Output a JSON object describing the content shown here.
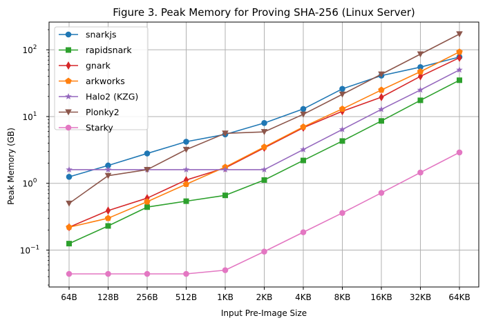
{
  "chart_data": {
    "type": "line",
    "title": "Figure 3. Peak Memory for Proving SHA-256 (Linux Server)",
    "xlabel": "Input Pre-Image Size",
    "ylabel": "Peak Memory (GB)",
    "yscale": "log",
    "ylim": [
      0.028,
      260
    ],
    "yticks": [
      {
        "value": 0.1,
        "base": "10",
        "exp": "−1"
      },
      {
        "value": 1,
        "base": "10",
        "exp": "0"
      },
      {
        "value": 10,
        "base": "10",
        "exp": "1"
      },
      {
        "value": 100,
        "base": "10",
        "exp": "2"
      }
    ],
    "grid": true,
    "legend_position": "top-left",
    "categories": [
      "64B",
      "128B",
      "256B",
      "512B",
      "1KB",
      "2KB",
      "4KB",
      "8KB",
      "16KB",
      "32KB",
      "64KB"
    ],
    "series": [
      {
        "name": "snarkjs",
        "color": "#1f77b4",
        "marker": "circle",
        "values": [
          1.25,
          1.85,
          2.8,
          4.2,
          5.4,
          8.0,
          13.0,
          26.0,
          41.0,
          55.0,
          78.0
        ]
      },
      {
        "name": "rapidsnark",
        "color": "#2ca02c",
        "marker": "square",
        "values": [
          0.125,
          0.23,
          0.44,
          0.54,
          0.66,
          1.12,
          2.2,
          4.3,
          8.6,
          17.5,
          35.0
        ]
      },
      {
        "name": "gnark",
        "color": "#d62728",
        "marker": "thin_diamond",
        "values": [
          0.22,
          0.39,
          0.6,
          1.12,
          1.7,
          3.4,
          6.8,
          12.0,
          19.5,
          40.0,
          76.0
        ]
      },
      {
        "name": "arkworks",
        "color": "#ff7f0e",
        "marker": "pentagon",
        "values": [
          0.22,
          0.3,
          0.53,
          0.97,
          1.75,
          3.5,
          7.0,
          13.0,
          25.0,
          47.0,
          93.0
        ]
      },
      {
        "name": "Halo2 (KZG)",
        "color": "#9467bd",
        "marker": "star",
        "values": [
          1.6,
          1.6,
          1.6,
          1.6,
          1.6,
          1.6,
          3.2,
          6.4,
          12.8,
          25.0,
          50.0
        ]
      },
      {
        "name": "Plonky2",
        "color": "#8c564b",
        "marker": "triangle_down",
        "values": [
          0.5,
          1.3,
          1.6,
          3.2,
          5.6,
          5.9,
          10.8,
          21.5,
          43.0,
          86.0,
          172.0
        ]
      },
      {
        "name": "Starky",
        "color": "#e377c2",
        "marker": "circle",
        "values": [
          0.044,
          0.044,
          0.044,
          0.044,
          0.05,
          0.095,
          0.185,
          0.36,
          0.72,
          1.45,
          2.9
        ]
      }
    ]
  }
}
